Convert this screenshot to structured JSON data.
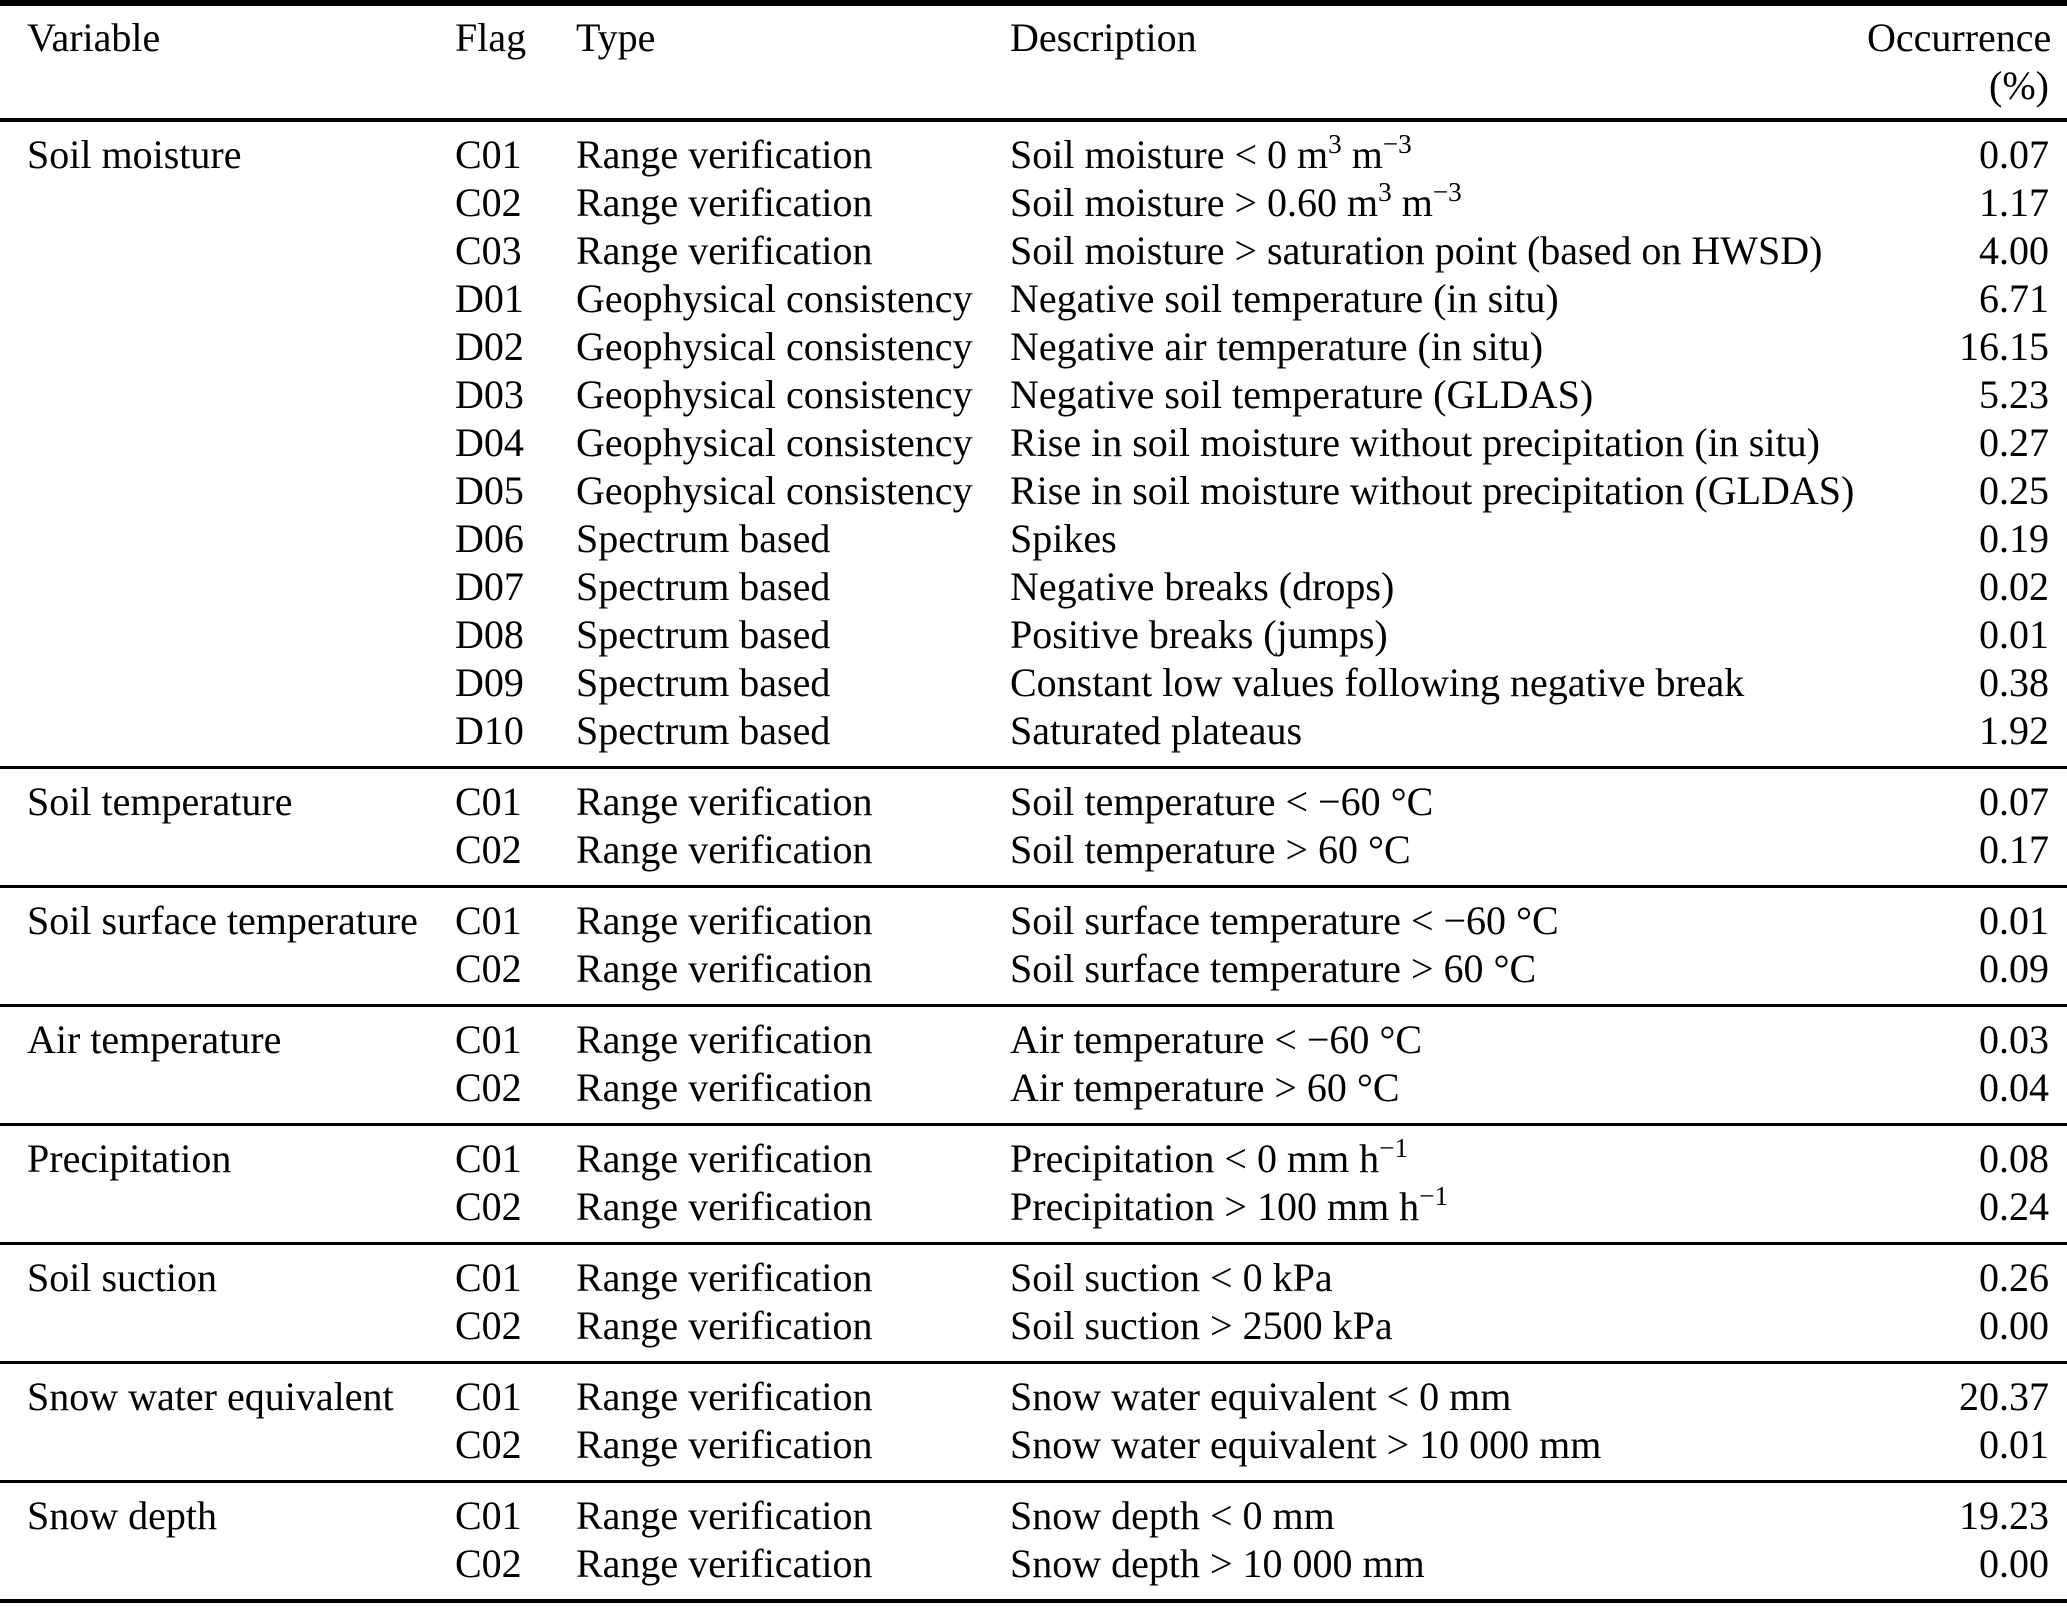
{
  "table": {
    "header": {
      "variable": "Variable",
      "flag": "Flag",
      "type": "Type",
      "description": "Description",
      "occurrence": "Occurrence",
      "occurrence_unit": "(%)"
    },
    "groups": [
      {
        "variable": "Soil moisture",
        "rows": [
          {
            "flag": "C01",
            "type": "Range verification",
            "description": "Soil moisture < 0 m^3^ m^−3^",
            "occurrence": "0.07"
          },
          {
            "flag": "C02",
            "type": "Range verification",
            "description": "Soil moisture > 0.60 m^3^ m^−3^",
            "occurrence": "1.17"
          },
          {
            "flag": "C03",
            "type": "Range verification",
            "description": "Soil moisture > saturation point (based on HWSD)",
            "occurrence": "4.00"
          },
          {
            "flag": "D01",
            "type": "Geophysical consistency",
            "description": "Negative soil temperature (in situ)",
            "occurrence": "6.71"
          },
          {
            "flag": "D02",
            "type": "Geophysical consistency",
            "description": "Negative air temperature (in situ)",
            "occurrence": "16.15"
          },
          {
            "flag": "D03",
            "type": "Geophysical consistency",
            "description": "Negative soil temperature (GLDAS)",
            "occurrence": "5.23"
          },
          {
            "flag": "D04",
            "type": "Geophysical consistency",
            "description": "Rise in soil moisture without precipitation (in situ)",
            "occurrence": "0.27"
          },
          {
            "flag": "D05",
            "type": "Geophysical consistency",
            "description": "Rise in soil moisture without precipitation (GLDAS)",
            "occurrence": "0.25"
          },
          {
            "flag": "D06",
            "type": "Spectrum based",
            "description": "Spikes",
            "occurrence": "0.19"
          },
          {
            "flag": "D07",
            "type": "Spectrum based",
            "description": "Negative breaks (drops)",
            "occurrence": "0.02"
          },
          {
            "flag": "D08",
            "type": "Spectrum based",
            "description": "Positive breaks (jumps)",
            "occurrence": "0.01"
          },
          {
            "flag": "D09",
            "type": "Spectrum based",
            "description": "Constant low values following negative break",
            "occurrence": "0.38"
          },
          {
            "flag": "D10",
            "type": "Spectrum based",
            "description": "Saturated plateaus",
            "occurrence": "1.92"
          }
        ]
      },
      {
        "variable": "Soil temperature",
        "rows": [
          {
            "flag": "C01",
            "type": "Range verification",
            "description": "Soil temperature < −60 °C",
            "occurrence": "0.07"
          },
          {
            "flag": "C02",
            "type": "Range verification",
            "description": "Soil temperature > 60 °C",
            "occurrence": "0.17"
          }
        ]
      },
      {
        "variable": "Soil surface temperature",
        "rows": [
          {
            "flag": "C01",
            "type": "Range verification",
            "description": "Soil surface temperature < −60 °C",
            "occurrence": "0.01"
          },
          {
            "flag": "C02",
            "type": "Range verification",
            "description": "Soil surface temperature > 60 °C",
            "occurrence": "0.09"
          }
        ]
      },
      {
        "variable": "Air temperature",
        "rows": [
          {
            "flag": "C01",
            "type": "Range verification",
            "description": "Air temperature < −60 °C",
            "occurrence": "0.03"
          },
          {
            "flag": "C02",
            "type": "Range verification",
            "description": "Air temperature > 60 °C",
            "occurrence": "0.04"
          }
        ]
      },
      {
        "variable": "Precipitation",
        "rows": [
          {
            "flag": "C01",
            "type": "Range verification",
            "description": "Precipitation < 0 mm h^−1^",
            "occurrence": "0.08"
          },
          {
            "flag": "C02",
            "type": "Range verification",
            "description": "Precipitation > 100 mm h^−1^",
            "occurrence": "0.24"
          }
        ]
      },
      {
        "variable": "Soil suction",
        "rows": [
          {
            "flag": "C01",
            "type": "Range verification",
            "description": "Soil suction < 0 kPa",
            "occurrence": "0.26"
          },
          {
            "flag": "C02",
            "type": "Range verification",
            "description": "Soil suction > 2500 kPa",
            "occurrence": "0.00"
          }
        ]
      },
      {
        "variable": "Snow water equivalent",
        "rows": [
          {
            "flag": "C01",
            "type": "Range verification",
            "description": "Snow water equivalent < 0 mm",
            "occurrence": "20.37"
          },
          {
            "flag": "C02",
            "type": "Range verification",
            "description": "Snow water equivalent > 10 000 mm",
            "occurrence": "0.01"
          }
        ]
      },
      {
        "variable": "Snow depth",
        "rows": [
          {
            "flag": "C01",
            "type": "Range verification",
            "description": "Snow depth < 0 mm",
            "occurrence": "19.23"
          },
          {
            "flag": "C02",
            "type": "Range verification",
            "description": "Snow depth > 10 000 mm",
            "occurrence": "0.00"
          }
        ]
      }
    ]
  }
}
